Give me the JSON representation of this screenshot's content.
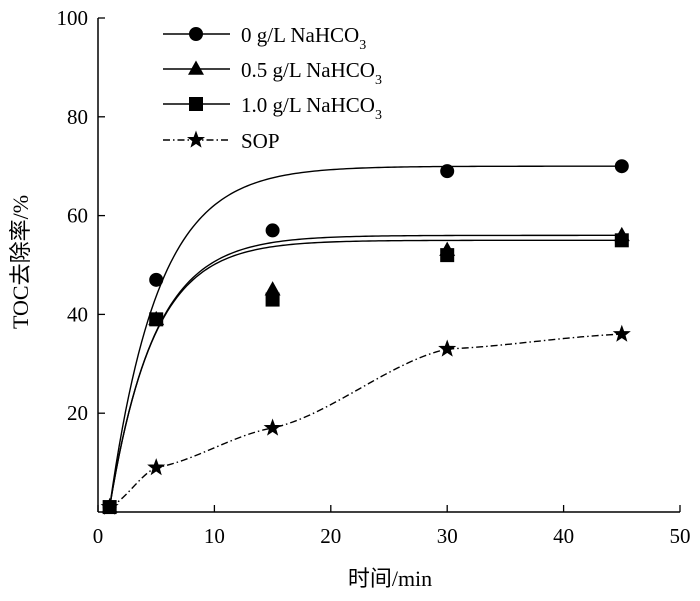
{
  "chart_data": {
    "type": "line",
    "title": "",
    "xlabel": "时间/min",
    "ylabel": "TOC去除率/%",
    "xlim": [
      0,
      50
    ],
    "ylim": [
      0,
      100
    ],
    "xticks": [
      0,
      10,
      20,
      30,
      40,
      50
    ],
    "yticks": [
      20,
      40,
      60,
      80,
      100
    ],
    "x_tick_labels": [
      "0",
      "10",
      "20",
      "30",
      "40",
      "50"
    ],
    "y_tick_labels": [
      "20",
      "40",
      "60",
      "80",
      "100"
    ],
    "grid": false,
    "legend_position": "top-left",
    "series": [
      {
        "name": "0 g/L NaHCO",
        "name_subscript": "3",
        "marker": "circle",
        "line_style": "solid",
        "color": "#000000",
        "x": [
          1,
          5,
          15,
          30,
          45
        ],
        "y": [
          1,
          47,
          57,
          69,
          70
        ]
      },
      {
        "name": "0.5 g/L NaHCO",
        "name_subscript": "3",
        "marker": "triangle",
        "line_style": "solid",
        "color": "#000000",
        "x": [
          1,
          5,
          15,
          30,
          45
        ],
        "y": [
          1,
          39,
          45,
          53,
          56
        ]
      },
      {
        "name": "1.0 g/L NaHCO",
        "name_subscript": "3",
        "marker": "square",
        "line_style": "solid",
        "color": "#000000",
        "x": [
          1,
          5,
          15,
          30,
          45
        ],
        "y": [
          1,
          39,
          43,
          52,
          55
        ]
      },
      {
        "name": "SOP",
        "name_subscript": "",
        "marker": "star",
        "line_style": "dash-dot",
        "color": "#000000",
        "x": [
          1,
          5,
          15,
          30,
          45
        ],
        "y": [
          1,
          9,
          17,
          33,
          36
        ]
      }
    ]
  }
}
